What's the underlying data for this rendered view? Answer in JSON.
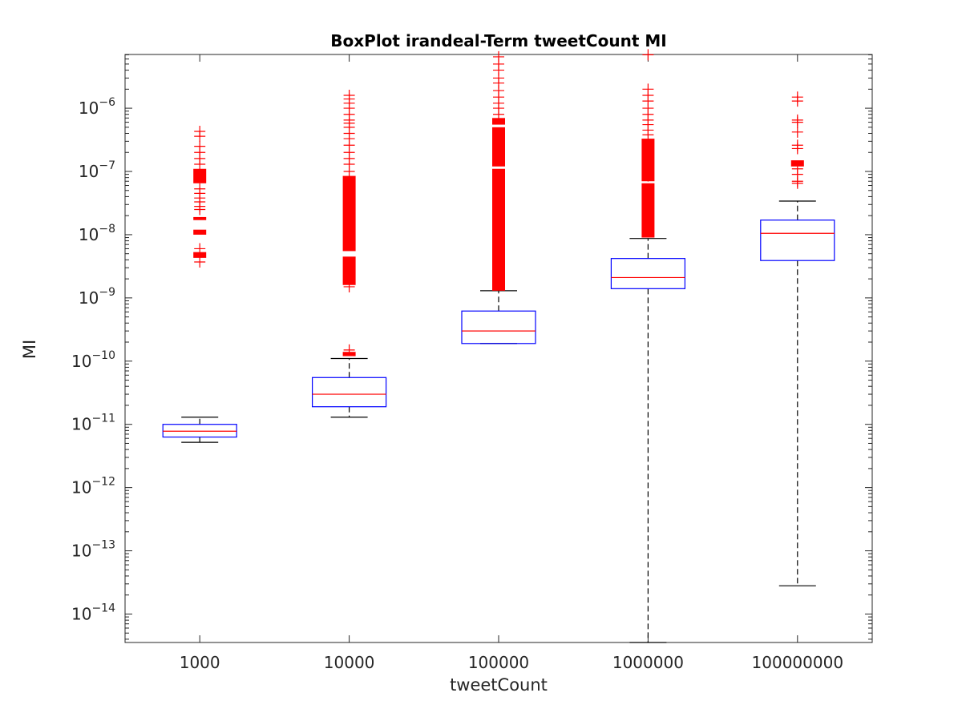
{
  "chart_data": {
    "type": "boxplot",
    "title": "BoxPlot irandeal-Term tweetCount MI",
    "xlabel": "tweetCount",
    "ylabel": "MI",
    "yscale": "log",
    "ylim_exponent": [
      -14.45,
      -5.15
    ],
    "ytick_exponents": [
      -14,
      -13,
      -12,
      -11,
      -10,
      -9,
      -8,
      -7,
      -6
    ],
    "ytick_base": "10",
    "categories": [
      "1000",
      "10000",
      "100000",
      "1000000",
      "100000000"
    ],
    "series": [
      {
        "name": "1000",
        "whisker_low": 5.2e-12,
        "q1": 6.3e-12,
        "median": 7.8e-12,
        "q3": 1e-11,
        "whisker_high": 1.3e-11,
        "outliers_dense_ranges": [
          [
            4.3e-09,
            5.3e-09
          ],
          [
            1e-08,
            1.2e-08
          ],
          [
            1.7e-08,
            1.9e-08
          ],
          [
            6.5e-08,
            1.1e-07
          ]
        ],
        "outliers": [
          3.7e-09,
          6e-09,
          2.5e-08,
          2.8e-08,
          3.3e-08,
          3.8e-08,
          4.5e-08,
          5.3e-08,
          1.3e-07,
          1.6e-07,
          2e-07,
          2.5e-07,
          3.6e-07,
          4.3e-07
        ]
      },
      {
        "name": "10000",
        "whisker_low": 1.3e-11,
        "q1": 1.9e-11,
        "median": 3e-11,
        "q3": 5.5e-11,
        "whisker_high": 1.1e-10,
        "outliers_dense_ranges": [
          [
            1.2e-10,
            1.4e-10
          ],
          [
            1.6e-09,
            4.5e-09
          ],
          [
            5.5e-09,
            8.5e-08
          ]
        ],
        "outliers": [
          1.5e-10,
          1.5e-09,
          1e-07,
          1.3e-07,
          1.6e-07,
          2e-07,
          2.6e-07,
          3.3e-07,
          4e-07,
          5e-07,
          5.8e-07,
          6.5e-07,
          8e-07,
          1e-06,
          1.2e-06,
          1.4e-06,
          1.6e-06
        ]
      },
      {
        "name": "100000",
        "whisker_low": 1.9e-10,
        "q1": 1.9e-10,
        "median": 3e-10,
        "q3": 6.2e-10,
        "whisker_high": 1.3e-09,
        "outliers_dense_ranges": [
          [
            1.3e-09,
            1.1e-07
          ],
          [
            1.2e-07,
            5e-07
          ],
          [
            5.5e-07,
            7e-07
          ]
        ],
        "outliers": [
          8e-07,
          1e-06,
          1.2e-06,
          1.5e-06,
          1.9e-06,
          2.5e-06,
          3e-06,
          4e-06,
          5e-06,
          6.5e-06
        ]
      },
      {
        "name": "1000000",
        "whisker_low": 3.3e-15,
        "q1": 1.4e-09,
        "median": 2.1e-09,
        "q3": 4.2e-09,
        "whisker_high": 8.7e-09,
        "outliers_dense_ranges": [
          [
            9e-09,
            6.5e-08
          ],
          [
            7e-08,
            3.3e-07
          ]
        ],
        "outliers": [
          8.5e-08,
          1e-07,
          1.2e-07,
          1.5e-07,
          1.8e-07,
          2.2e-07,
          3.8e-07,
          4.5e-07,
          5.5e-07,
          6.5e-07,
          8e-07,
          1e-06,
          1.3e-06,
          1.6e-06,
          2e-06,
          7e-06
        ]
      },
      {
        "name": "100000000",
        "whisker_low": 2.8e-14,
        "q1": 3.9e-09,
        "median": 1.05e-08,
        "q3": 1.7e-08,
        "whisker_high": 3.4e-08,
        "outliers_dense_ranges": [
          [
            1.2e-07,
            1.5e-07
          ]
        ],
        "outliers": [
          6.5e-08,
          7e-08,
          9e-08,
          1.1e-07,
          2.3e-07,
          2.6e-07,
          4.2e-07,
          6e-07,
          6.5e-07,
          1.3e-06,
          1.5e-06
        ]
      }
    ],
    "colors": {
      "box": "#0000ff",
      "median": "#ff0000",
      "whisker": "#000000",
      "outlier": "#ff0000",
      "axis": "#262626"
    }
  }
}
